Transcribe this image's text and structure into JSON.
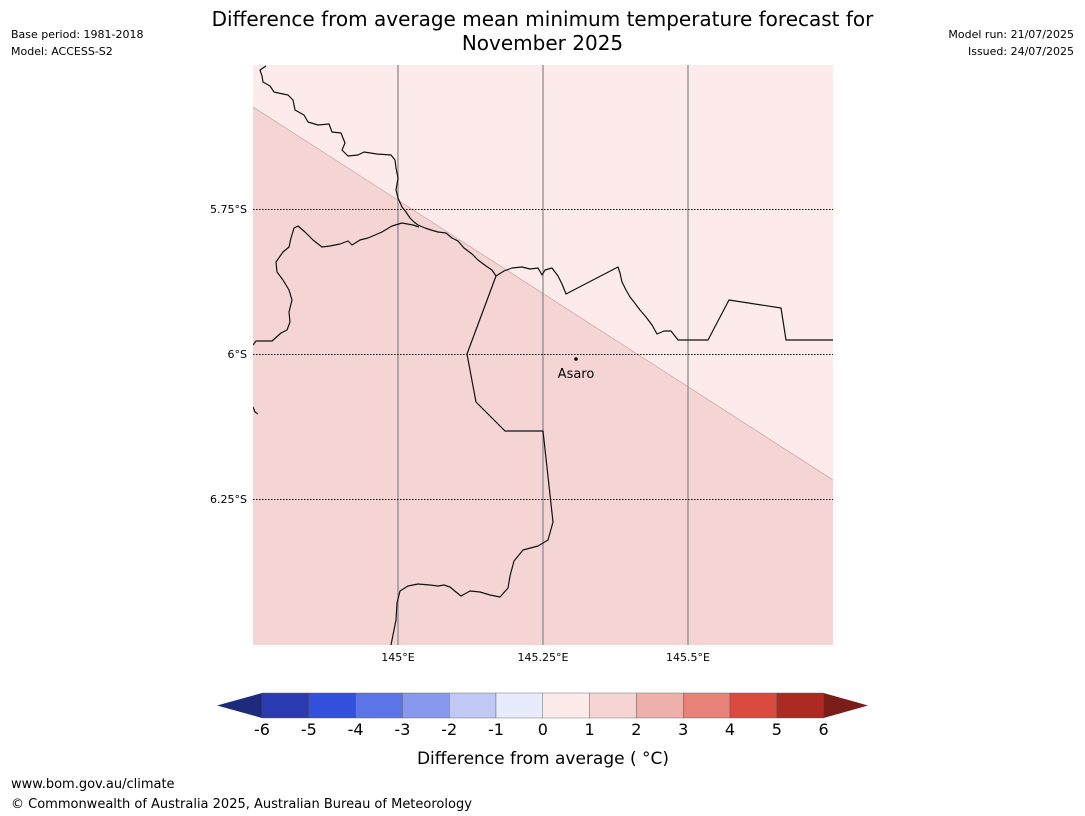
{
  "header": {
    "title_line1": "Difference from average mean minimum temperature forecast for",
    "title_line2": "November 2025",
    "base_period": "Base period: 1981-2018",
    "model": "Model: ACCESS-S2",
    "model_run": "Model run: 21/07/2025",
    "issued": "Issued: 24/07/2025"
  },
  "map": {
    "lat_labels": [
      "5.75°S",
      "6°S",
      "6.25°S"
    ],
    "lon_labels": [
      "145°E",
      "145.25°E",
      "145.5°E"
    ],
    "place_label": "Asaro",
    "region_colors": {
      "upper_right": "#fcebea",
      "lower_left": "#f5d5d4"
    },
    "regions": [
      {
        "name": "upper-right",
        "range": "0 to 1"
      },
      {
        "name": "lower-left",
        "range": "1 to 2"
      }
    ]
  },
  "legend": {
    "title": "Difference from average ( °C)",
    "tick_labels": [
      "-6",
      "-5",
      "-4",
      "-3",
      "-2",
      "-1",
      "0",
      "1",
      "2",
      "3",
      "4",
      "5",
      "6"
    ],
    "colors": {
      "under": "#1d2b7a",
      "bins": [
        "#2a3ab0",
        "#3350dd",
        "#5b74e8",
        "#8898ee",
        "#c0c8f5",
        "#e8ebfc",
        "#fcebea",
        "#f5d5d4",
        "#eeb0aa",
        "#e6827a",
        "#db4a3f",
        "#ad2a23"
      ],
      "over": "#7a1c18"
    }
  },
  "footer": {
    "url": "www.bom.gov.au/climate",
    "copyright": "© Commonwealth of Australia 2025, Australian Bureau of Meteorology"
  }
}
